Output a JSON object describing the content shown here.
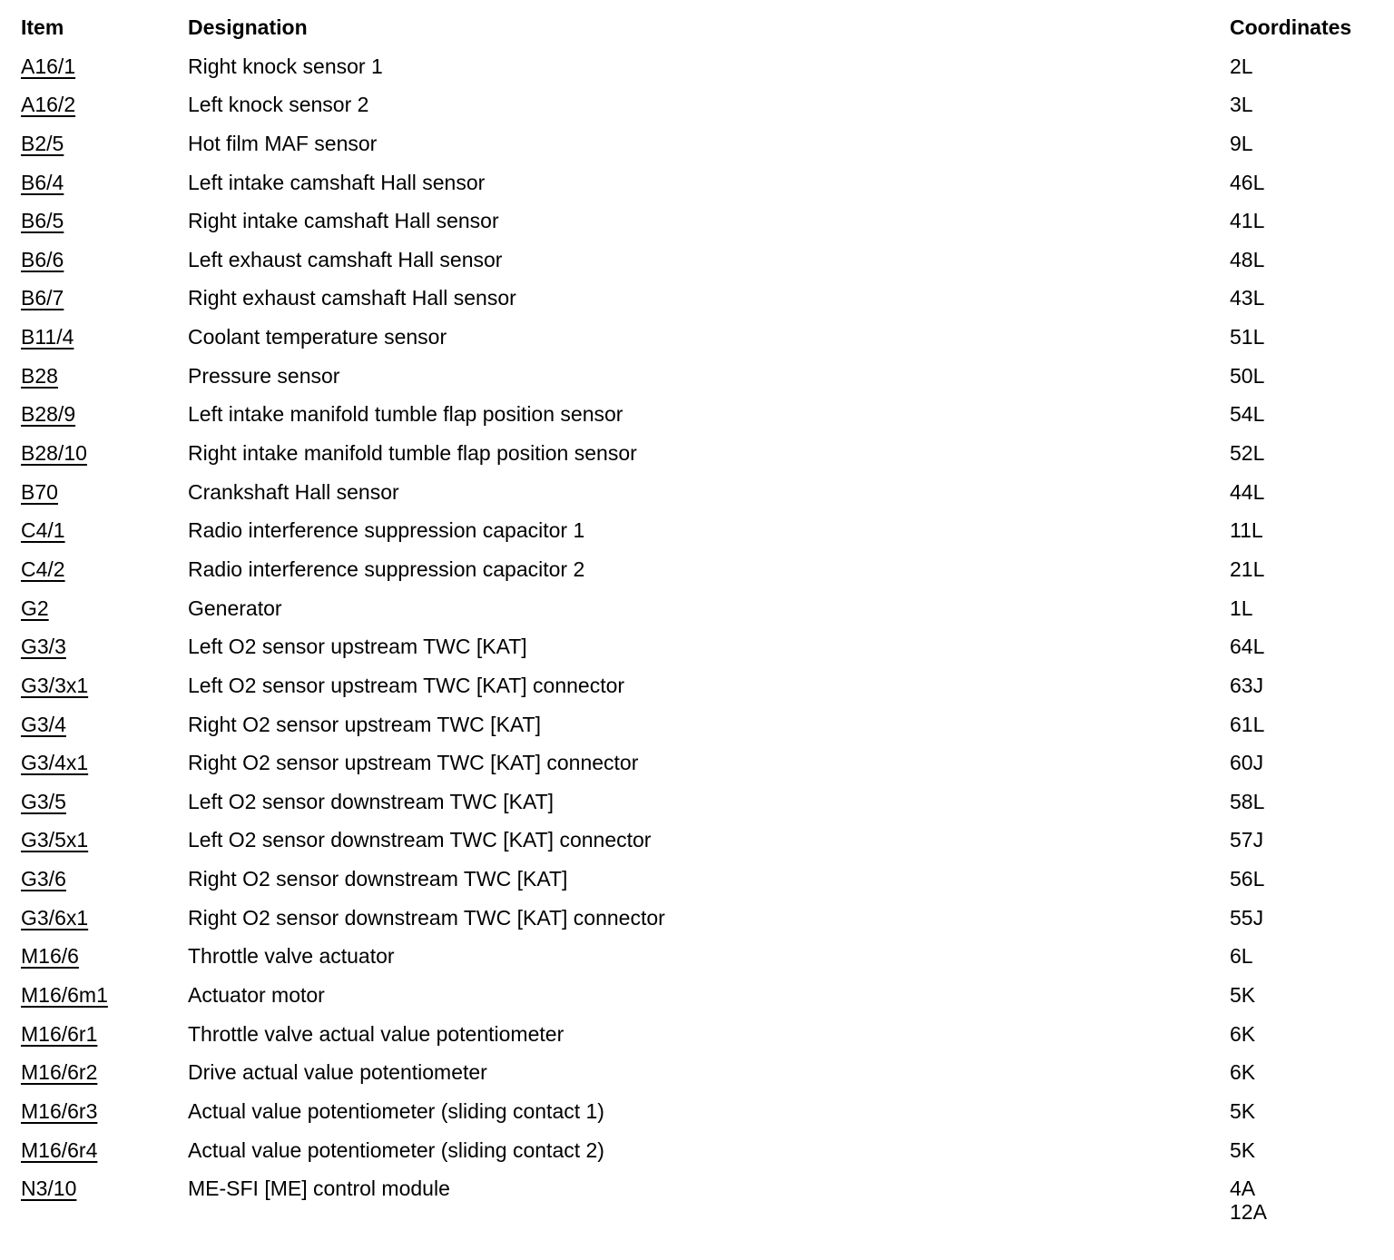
{
  "page": {
    "background_color": "#ffffff",
    "text_color": "#000000"
  },
  "table": {
    "headers": {
      "item": "Item",
      "designation": "Designation",
      "coordinates": "Coordinates"
    },
    "rows": [
      {
        "item": "A16/1",
        "designation": "Right knock sensor 1",
        "coordinates": [
          "2L"
        ]
      },
      {
        "item": "A16/2",
        "designation": "Left knock sensor 2",
        "coordinates": [
          "3L"
        ]
      },
      {
        "item": "B2/5",
        "designation": "Hot film MAF sensor",
        "coordinates": [
          "9L"
        ]
      },
      {
        "item": "B6/4",
        "designation": "Left intake camshaft Hall sensor",
        "coordinates": [
          "46L"
        ]
      },
      {
        "item": "B6/5",
        "designation": "Right intake camshaft Hall sensor",
        "coordinates": [
          "41L"
        ]
      },
      {
        "item": "B6/6",
        "designation": "Left exhaust camshaft Hall sensor",
        "coordinates": [
          "48L"
        ]
      },
      {
        "item": "B6/7",
        "designation": "Right exhaust camshaft Hall sensor",
        "coordinates": [
          "43L"
        ]
      },
      {
        "item": "B11/4",
        "designation": "Coolant temperature sensor",
        "coordinates": [
          "51L"
        ]
      },
      {
        "item": "B28",
        "designation": "Pressure sensor",
        "coordinates": [
          "50L"
        ]
      },
      {
        "item": "B28/9",
        "designation": "Left intake manifold tumble flap position sensor",
        "coordinates": [
          "54L"
        ]
      },
      {
        "item": "B28/10",
        "designation": "Right intake manifold tumble flap position sensor",
        "coordinates": [
          "52L"
        ]
      },
      {
        "item": "B70",
        "designation": "Crankshaft Hall sensor",
        "coordinates": [
          "44L"
        ]
      },
      {
        "item": "C4/1",
        "designation": "Radio interference suppression capacitor 1",
        "coordinates": [
          "11L"
        ]
      },
      {
        "item": "C4/2",
        "designation": "Radio interference suppression capacitor 2",
        "coordinates": [
          "21L"
        ]
      },
      {
        "item": "G2",
        "designation": "Generator",
        "coordinates": [
          "1L"
        ]
      },
      {
        "item": "G3/3",
        "designation": "Left O2 sensor upstream TWC [KAT]",
        "coordinates": [
          "64L"
        ]
      },
      {
        "item": "G3/3x1",
        "designation": "Left O2 sensor upstream TWC [KAT] connector",
        "coordinates": [
          "63J"
        ]
      },
      {
        "item": "G3/4",
        "designation": "Right O2 sensor upstream TWC [KAT]",
        "coordinates": [
          "61L"
        ]
      },
      {
        "item": "G3/4x1",
        "designation": "Right O2 sensor upstream TWC [KAT] connector",
        "coordinates": [
          "60J"
        ]
      },
      {
        "item": "G3/5",
        "designation": "Left O2 sensor downstream TWC [KAT]",
        "coordinates": [
          "58L"
        ]
      },
      {
        "item": "G3/5x1",
        "designation": "Left O2 sensor downstream TWC [KAT] connector",
        "coordinates": [
          "57J"
        ]
      },
      {
        "item": "G3/6",
        "designation": "Right O2 sensor downstream TWC [KAT]",
        "coordinates": [
          "56L"
        ]
      },
      {
        "item": "G3/6x1",
        "designation": "Right O2 sensor downstream TWC [KAT] connector",
        "coordinates": [
          "55J"
        ]
      },
      {
        "item": "M16/6",
        "designation": "Throttle valve actuator",
        "coordinates": [
          "6L"
        ]
      },
      {
        "item": "M16/6m1",
        "designation": "Actuator motor",
        "coordinates": [
          "5K"
        ]
      },
      {
        "item": "M16/6r1",
        "designation": "Throttle valve actual value potentiometer",
        "coordinates": [
          "6K"
        ]
      },
      {
        "item": "M16/6r2",
        "designation": "Drive actual value potentiometer",
        "coordinates": [
          "6K"
        ]
      },
      {
        "item": "M16/6r3",
        "designation": "Actual value potentiometer (sliding contact 1)",
        "coordinates": [
          "5K"
        ]
      },
      {
        "item": "M16/6r4",
        "designation": "Actual value potentiometer (sliding contact 2)",
        "coordinates": [
          "5K"
        ]
      },
      {
        "item": "N3/10",
        "designation": "ME-SFI [ME] control module",
        "coordinates": [
          "4A",
          "12A"
        ]
      }
    ]
  }
}
